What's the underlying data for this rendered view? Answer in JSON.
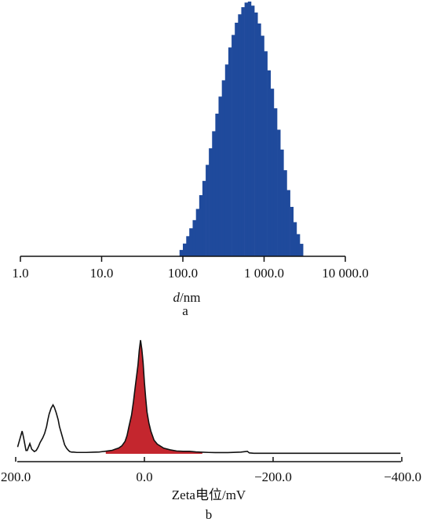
{
  "chart_data": [
    {
      "type": "bar",
      "panel_label": "a",
      "xlabel_italic": "d",
      "xlabel_rest": "/nm",
      "xscale": "log",
      "xlim": [
        1,
        10000
      ],
      "ticks": [
        1,
        10,
        100,
        1000,
        10000
      ],
      "tick_labels": [
        "1.0",
        "10.0",
        "100.0",
        "1 000.0",
        "10 000.0"
      ],
      "color": "#1f4a9c",
      "x": [
        91,
        100,
        110,
        120,
        132,
        145,
        159,
        174,
        191,
        209,
        229,
        251,
        275,
        302,
        331,
        363,
        398,
        436,
        478,
        524,
        575,
        631,
        692,
        759,
        832,
        912,
        1000,
        1096,
        1202,
        1318,
        1445,
        1585,
        1738,
        1905,
        2089,
        2291,
        2512,
        2754
      ],
      "values": [
        2.5,
        5.0,
        7.9,
        11.0,
        14.2,
        18.6,
        24.0,
        29.6,
        35.9,
        42.4,
        49.1,
        56.0,
        62.7,
        69.1,
        75.3,
        82.0,
        86.9,
        91.7,
        95.0,
        97.8,
        99.6,
        100.0,
        98.4,
        95.7,
        91.4,
        86.6,
        80.5,
        73.0,
        65.8,
        58.1,
        49.7,
        41.9,
        33.8,
        26.0,
        19.4,
        13.4,
        8.7,
        4.9
      ]
    },
    {
      "type": "line",
      "panel_label": "b",
      "xlabel": "Zeta电位/mV",
      "xlim": [
        200,
        -400
      ],
      "ticks": [
        200,
        0,
        -200,
        -400
      ],
      "tick_labels": [
        "200.0",
        "0.0",
        "−200.0",
        "−400.0"
      ],
      "fill_color": "#c4262e",
      "fill_range": [
        60,
        -90
      ],
      "x": [
        197,
        193,
        190,
        188,
        186,
        184,
        182,
        180,
        178,
        175,
        171,
        168,
        165,
        162,
        158,
        155,
        152,
        150,
        148,
        145,
        142,
        140,
        137,
        134,
        132,
        129,
        126,
        124,
        121,
        118,
        116,
        113,
        110,
        105,
        100,
        90,
        80,
        70,
        60,
        50,
        45,
        40,
        35,
        30,
        27,
        24,
        20,
        17,
        14,
        10,
        8,
        6,
        4,
        2,
        0,
        -2,
        -4,
        -7,
        -10,
        -15,
        -20,
        -30,
        -40,
        -50,
        -60,
        -70,
        -80,
        -90,
        -100,
        -110,
        -130,
        -150,
        -160,
        -163,
        -170,
        -200,
        -250,
        -300,
        -350,
        -398
      ],
      "values": [
        6,
        14,
        20,
        15,
        9,
        3,
        3,
        6,
        9,
        4,
        2,
        3,
        6,
        10,
        14,
        18,
        24,
        30,
        35,
        40,
        43,
        41,
        36,
        30,
        24,
        18,
        12,
        8,
        5,
        3,
        2,
        1.5,
        1.5,
        1.2,
        1.2,
        1.2,
        1.4,
        1.6,
        2.3,
        3.1,
        4.1,
        5.1,
        7,
        11,
        16,
        24,
        34,
        46,
        60,
        78,
        91,
        100,
        92,
        80,
        63,
        49,
        37,
        27,
        20,
        12,
        8.5,
        5,
        3.5,
        2.5,
        2.2,
        2.2,
        1.7,
        1.4,
        1.2,
        1.1,
        1.1,
        1.5,
        2.2,
        0.8,
        0.5,
        0.5,
        0.5,
        0.5,
        0.5,
        0.5
      ]
    }
  ]
}
